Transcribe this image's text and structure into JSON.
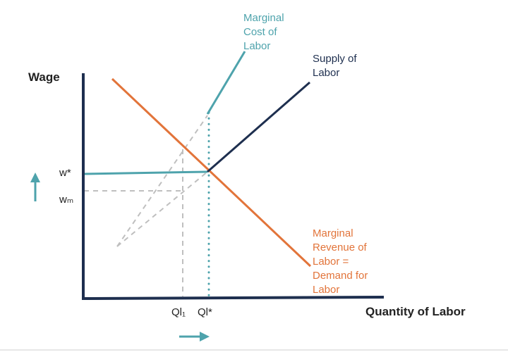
{
  "chart_data": {
    "type": "line",
    "xlabel": "Quantity of Labor",
    "ylabel": "Wage",
    "ticks": {
      "x": [
        "Ql₁",
        "Ql*"
      ],
      "y": [
        "w*",
        "wₘ"
      ]
    },
    "series": [
      {
        "name": "Marginal Cost of Labor",
        "lines": [
          "Marginal",
          "Cost of",
          "Labor"
        ]
      },
      {
        "name": "Supply of Labor",
        "lines": [
          "Supply of",
          "Labor"
        ]
      },
      {
        "name": "Marginal Revenue of Labor = Demand for Labor",
        "lines": [
          "Marginal",
          "Revenue of",
          "Labor =",
          "Demand for",
          "Labor"
        ]
      }
    ],
    "annotations": {
      "up_arrow": "wage-increase",
      "right_arrow": "quantity-increase"
    }
  },
  "colors": {
    "axis": "#1e2f4f",
    "mcl": "#4ea3ac",
    "supply": "#1e2f4f",
    "demand": "#e2743a",
    "dashed": "#bfbfbf",
    "arrow": "#4ea3ac",
    "rule": "#cfcfcf"
  }
}
